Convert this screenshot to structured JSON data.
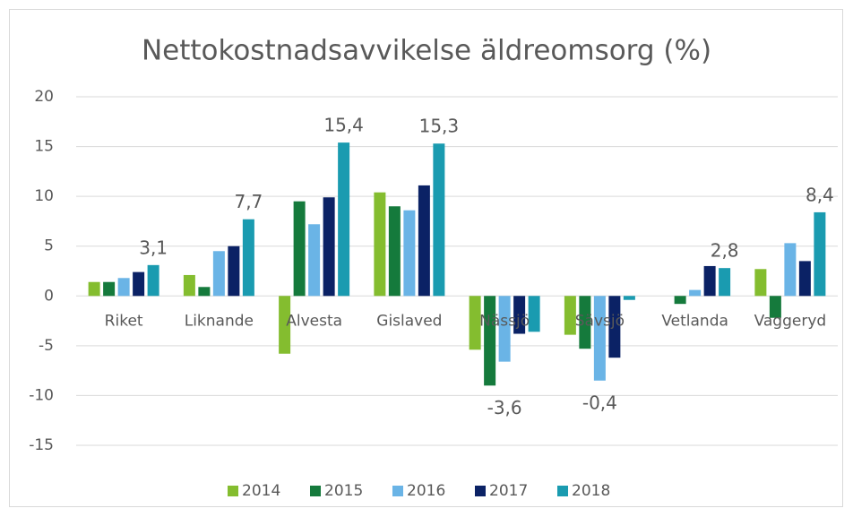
{
  "chart_data": {
    "type": "bar",
    "title": "Nettokostnadsavvikelse äldreomsorg (%)",
    "categories": [
      "Riket",
      "Liknande",
      "Alvesta",
      "Gislaved",
      "Nässjö",
      "Sävsjö",
      "Vetlanda",
      "Vaggeryd"
    ],
    "series": [
      {
        "name": "2014",
        "color": "#84bd2f",
        "values": [
          1.4,
          2.1,
          -5.8,
          10.4,
          -5.4,
          -3.9,
          0,
          2.7
        ]
      },
      {
        "name": "2015",
        "color": "#157a3c",
        "values": [
          1.4,
          0.9,
          9.5,
          9.0,
          -9.0,
          -5.3,
          -0.8,
          -2.2
        ]
      },
      {
        "name": "2016",
        "color": "#6ab4e6",
        "values": [
          1.8,
          4.5,
          7.2,
          8.6,
          -6.6,
          -8.5,
          0.6,
          5.3
        ]
      },
      {
        "name": "2017",
        "color": "#0b2265",
        "values": [
          2.4,
          5.0,
          9.9,
          11.1,
          -3.8,
          -6.2,
          3.0,
          3.5
        ]
      },
      {
        "name": "2018",
        "color": "#1a9bb0",
        "values": [
          3.1,
          7.7,
          15.4,
          15.3,
          -3.6,
          -0.4,
          2.8,
          8.4
        ],
        "value_labels": [
          "3,1",
          "7,7",
          "15,4",
          "15,3",
          "-3,6",
          "-0,4",
          "2,8",
          "8,4"
        ]
      }
    ],
    "negative_label_color": "#ff0000",
    "ylim": [
      -15,
      20
    ],
    "yticks": [
      -15,
      -10,
      -5,
      0,
      5,
      10,
      15,
      20
    ],
    "grid": true,
    "legend": "bottom"
  }
}
